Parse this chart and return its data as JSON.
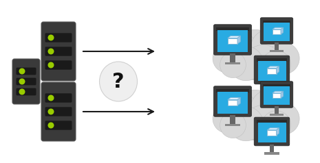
{
  "bg_color": "#ffffff",
  "server_color": "#3a3a3a",
  "server_dark": "#1a1a1a",
  "light_green": "#99cc00",
  "cloud_color": "#d8d8d8",
  "cloud_edge": "#c0c0c0",
  "monitor_frame": "#3c3c3c",
  "monitor_top_bar": "#2a2a2a",
  "monitor_screen": "#29abe2",
  "monitor_stand": "#666666",
  "monitor_base": "#888888",
  "arrow_color": "#1a1a1a",
  "question_bg": "#efefef",
  "question_edge": "#d0d0d0",
  "question_color": "#111111",
  "cube_front": "#ffffff",
  "cube_top": "#e0f0ff",
  "cube_right": "#a0c8e8",
  "cube_edge": "#80b8d8"
}
